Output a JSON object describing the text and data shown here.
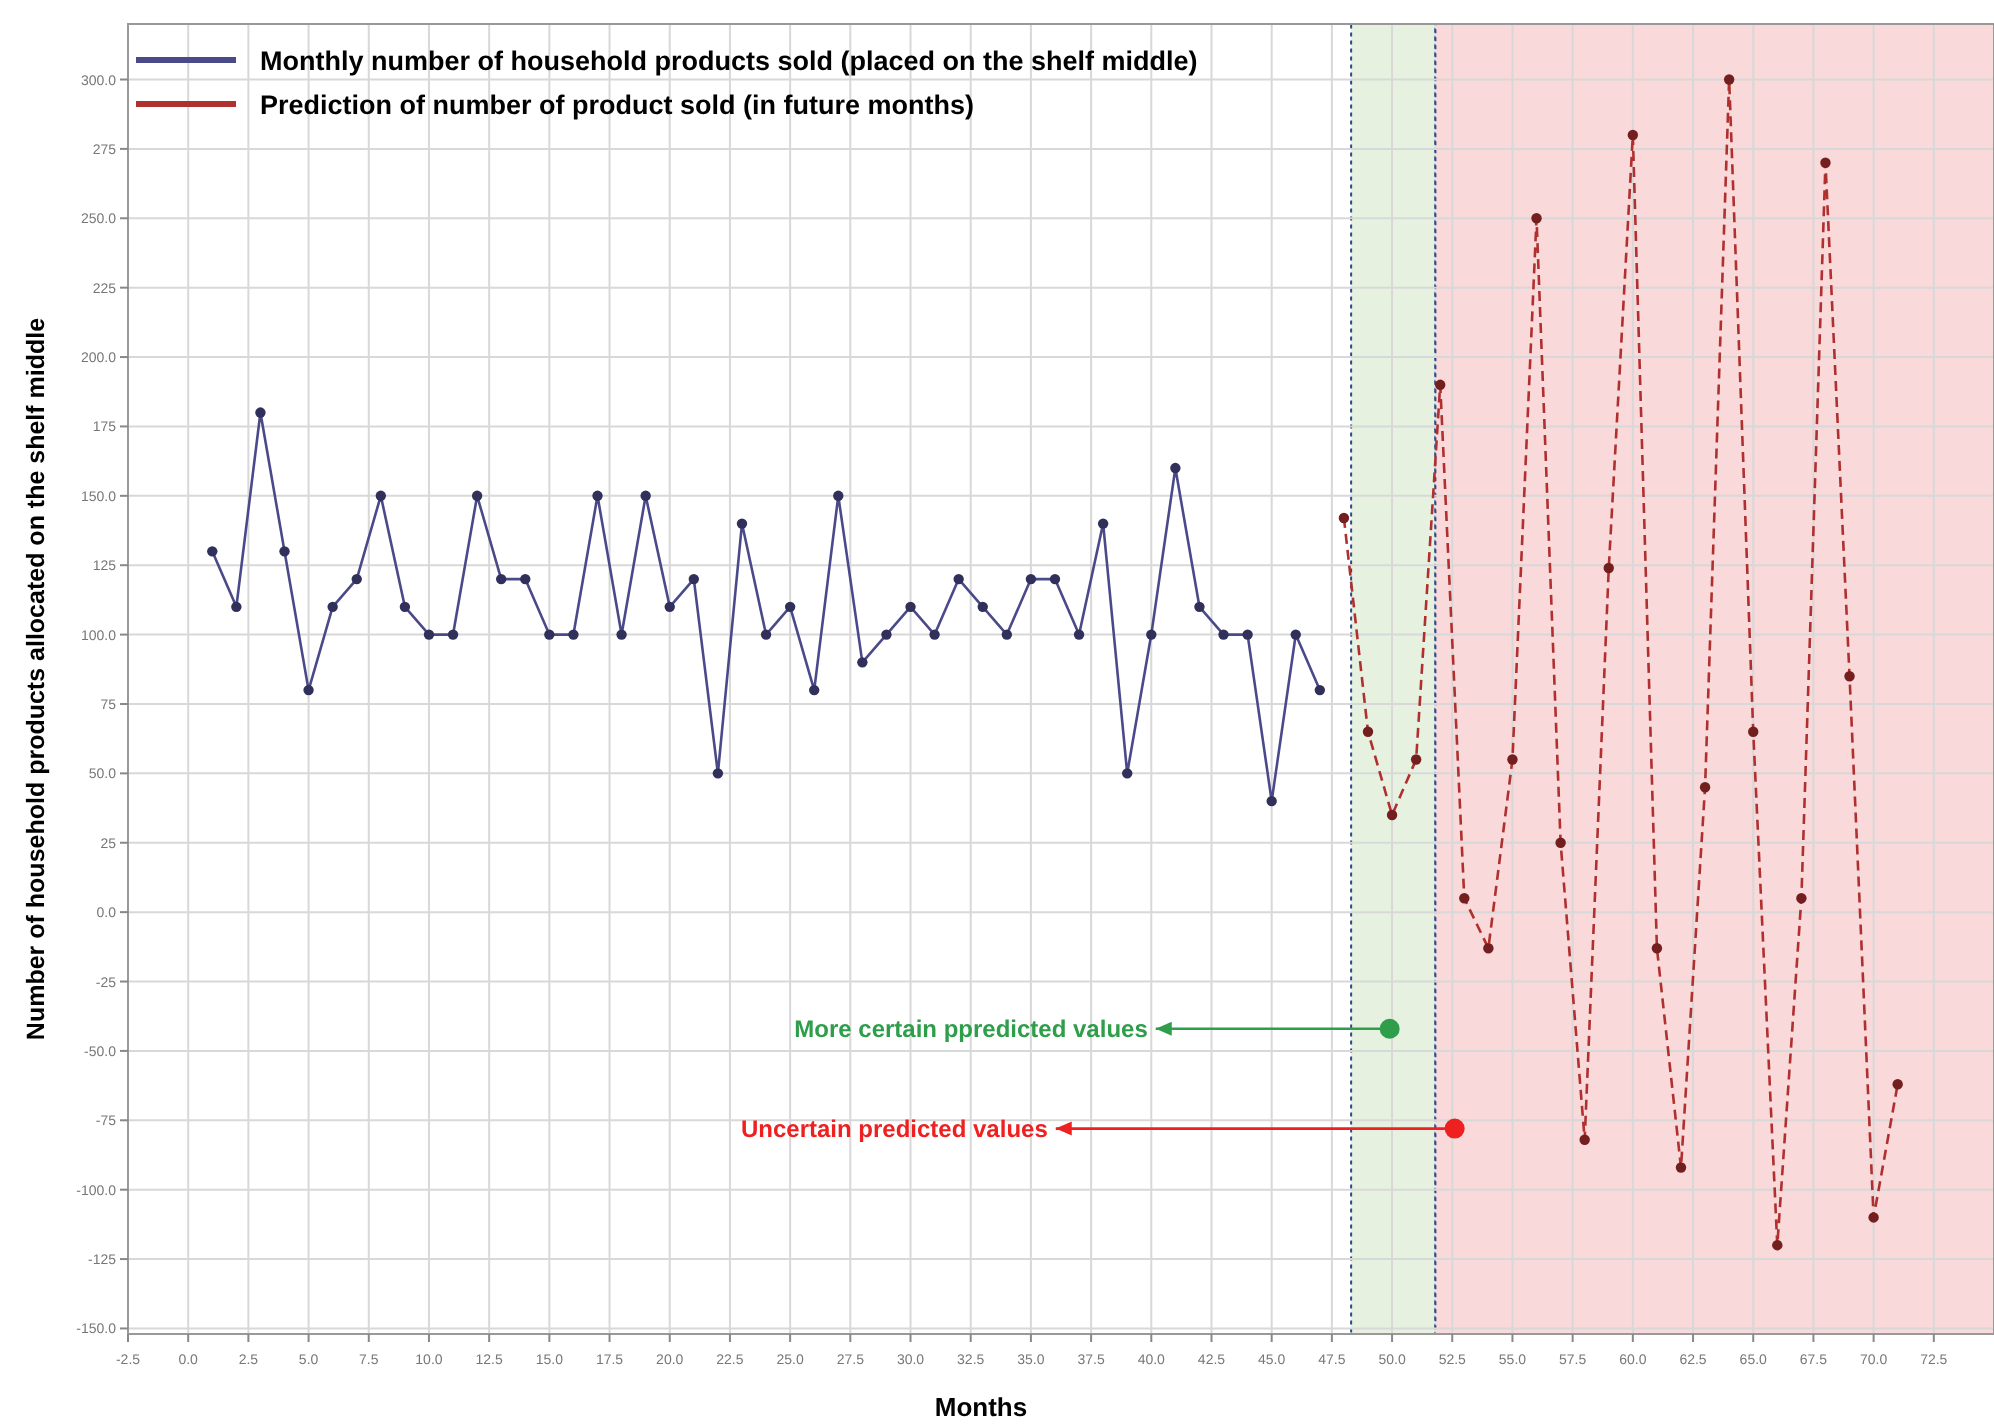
{
  "chart_data": {
    "type": "line",
    "xlabel": "Months",
    "ylabel": "Number of household products allocated on the shelf middle",
    "xlim": [
      -2.5,
      75
    ],
    "ylim": [
      -152,
      320
    ],
    "xticks": [
      {
        "value": -2.5,
        "label": "-2.5"
      },
      {
        "value": 0,
        "label": "0.0"
      },
      2.5,
      {
        "value": 5,
        "label": "5.0"
      },
      7.5,
      {
        "value": 10,
        "label": "10.0"
      },
      12.5,
      {
        "value": 15,
        "label": "15.0"
      },
      17.5,
      {
        "value": 20,
        "label": "20.0"
      },
      22.5,
      {
        "value": 25,
        "label": "25.0"
      },
      27.5,
      {
        "value": 30,
        "label": "30.0"
      },
      32.5,
      {
        "value": 35,
        "label": "35.0"
      },
      37.5,
      {
        "value": 40,
        "label": "40.0"
      },
      42.5,
      {
        "value": 45,
        "label": "45.0"
      },
      47.5,
      {
        "value": 50,
        "label": "50.0"
      },
      52.5,
      {
        "value": 55,
        "label": "55.0"
      },
      57.5,
      {
        "value": 60,
        "label": "60.0"
      },
      62.5,
      {
        "value": 65,
        "label": "65.0"
      },
      67.5,
      {
        "value": 70,
        "label": "70.0"
      },
      72.5
    ],
    "yticks": [
      {
        "value": 300,
        "label": "300.0"
      },
      275,
      {
        "value": 250,
        "label": "250.0"
      },
      225,
      {
        "value": 200,
        "label": "200.0"
      },
      175,
      {
        "value": 150,
        "label": "150.0"
      },
      125,
      {
        "value": 100,
        "label": "100.0"
      },
      75,
      {
        "value": 50,
        "label": "50.0"
      },
      25,
      {
        "value": 0,
        "label": "0.0"
      },
      -25,
      {
        "value": -50,
        "label": "-50.0"
      },
      -75,
      {
        "value": -100,
        "label": "-100.0"
      },
      -125,
      {
        "value": -150,
        "label": "-150.0"
      }
    ],
    "grid": true,
    "legend": "top left",
    "marker": "circle",
    "series": [
      {
        "name": "Monthly number of household products sold (placed on the shelf middle)",
        "color": "#4a4a8a",
        "line_style": "solid",
        "x": [
          1,
          2,
          3,
          4,
          5,
          6,
          7,
          8,
          9,
          10,
          11,
          12,
          13,
          14,
          15,
          16,
          17,
          18,
          19,
          20,
          21,
          22,
          23,
          24,
          25,
          26,
          27,
          28,
          29,
          30,
          31,
          32,
          33,
          34,
          35,
          36,
          37,
          38,
          39,
          40,
          41,
          42,
          43,
          44,
          45,
          46,
          47
        ],
        "values": [
          130,
          110,
          180,
          130,
          80,
          110,
          120,
          150,
          110,
          100,
          100,
          150,
          120,
          120,
          100,
          100,
          150,
          100,
          150,
          110,
          120,
          50,
          140,
          100,
          110,
          80,
          150,
          90,
          100,
          110,
          100,
          120,
          110,
          100,
          120,
          120,
          100,
          140,
          50,
          100,
          160,
          110,
          100,
          100,
          40,
          100,
          80
        ]
      },
      {
        "name": "Prediction of number of product sold  (in future months)",
        "color": "#b03030",
        "line_style": "dashed",
        "x": [
          48,
          49,
          50,
          51,
          52,
          53,
          54,
          55,
          56,
          57,
          58,
          59,
          60,
          61,
          62,
          63,
          64,
          65,
          66,
          67,
          68,
          69,
          70,
          71
        ],
        "values": [
          142,
          65,
          35,
          55,
          190,
          5,
          -13,
          55,
          250,
          25,
          -82,
          124,
          280,
          -13,
          -92,
          45,
          300,
          65,
          -120,
          5,
          270,
          85,
          -110,
          -62
        ]
      }
    ],
    "bands": [
      {
        "axis": "x",
        "from": 48.3,
        "to": 51.8,
        "color": "#e6f2df",
        "label": "More certain ppredicted values"
      },
      {
        "axis": "x",
        "from": 51.8,
        "to": 75,
        "color": "#f9d9d9",
        "label": "Uncertain predicted values"
      }
    ]
  }
}
